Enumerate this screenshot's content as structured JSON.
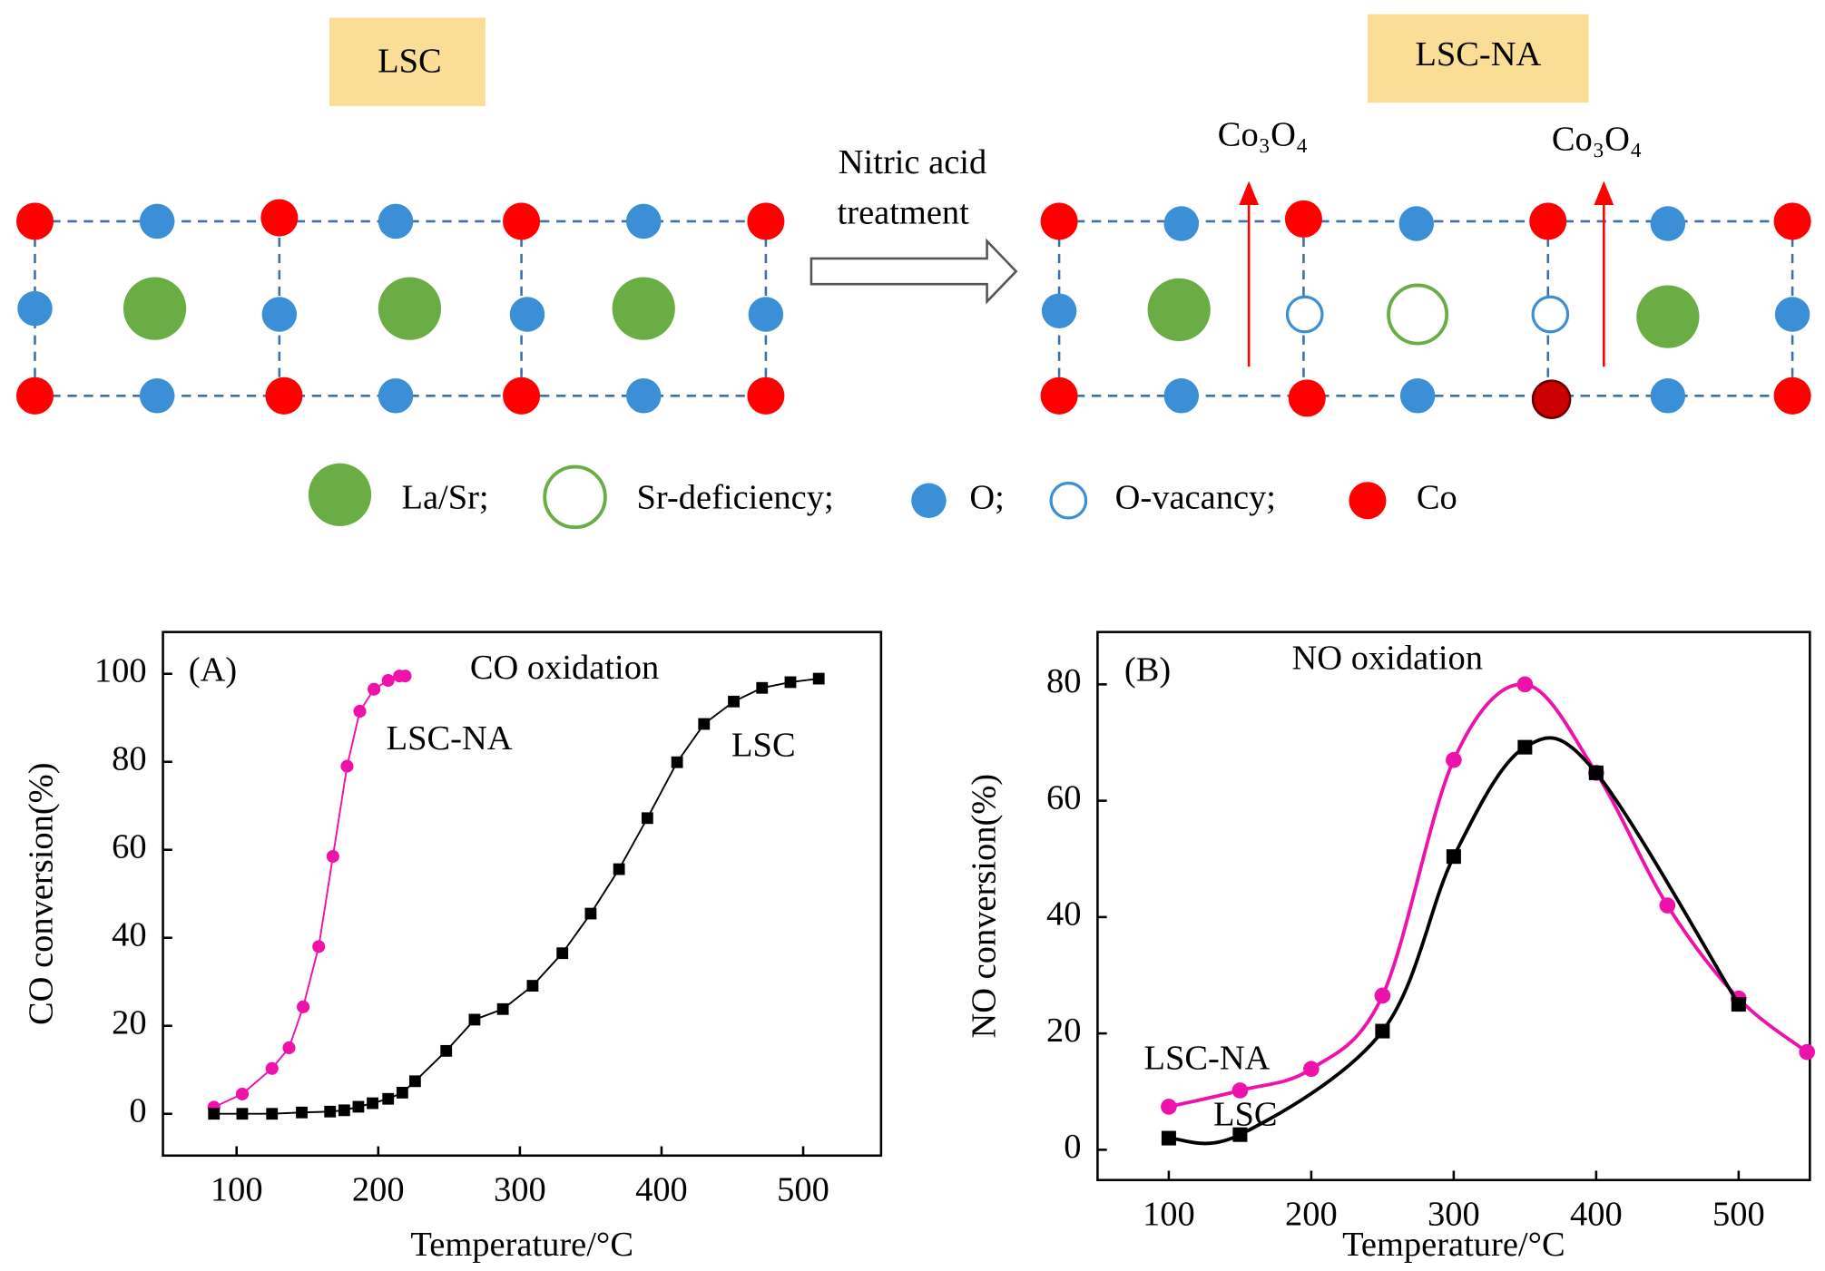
{
  "diagram": {
    "left_label": "LSC",
    "right_label": "LSC-NA",
    "arrow_label": [
      "Nitric acid",
      "treatment"
    ],
    "product_labels": [
      "Co₃O₄",
      "Co₃O₄"
    ],
    "legend": [
      "La/Sr;",
      "Sr-deficiency;",
      "O;",
      "O-vacancy;",
      "Co"
    ]
  },
  "chart_data": [
    {
      "type": "line",
      "panel": "(A)",
      "title": "CO oxidation",
      "x_label": "Temperature/°C",
      "y_label": "CO conversion(%)",
      "xlim": [
        48,
        555
      ],
      "ylim": [
        -9.5,
        109.5
      ],
      "xticks": [
        100,
        200,
        300,
        400,
        500
      ],
      "yticks": [
        0,
        20,
        40,
        60,
        80,
        100
      ],
      "series": [
        {
          "name": "LSC-NA",
          "color": "#ee11aa",
          "marker": "circle",
          "x": [
            84,
            104,
            125,
            137,
            147,
            158,
            168,
            178,
            187,
            197,
            207,
            215,
            219
          ],
          "values": [
            1.5,
            4.5,
            10.3,
            15,
            24.3,
            38,
            58.5,
            79,
            91.5,
            96.5,
            98.5,
            99.5,
            99.5
          ]
        },
        {
          "name": "LSC",
          "color": "#000000",
          "marker": "square",
          "x": [
            84,
            104,
            125,
            146,
            166,
            176,
            186,
            196,
            207,
            217,
            226,
            248,
            268,
            288,
            309,
            330,
            350,
            370,
            390,
            411,
            430,
            451,
            471,
            491,
            511
          ],
          "values": [
            0,
            0,
            0,
            0.3,
            0.5,
            0.8,
            1.6,
            2.4,
            3.4,
            4.8,
            7.4,
            14.3,
            21.4,
            23.8,
            29.1,
            36.5,
            45.5,
            55.6,
            67.2,
            79.9,
            88.6,
            93.7,
            96.8,
            98.1,
            98.9
          ]
        }
      ]
    },
    {
      "type": "line",
      "panel": "(B)",
      "title": "NO oxidation",
      "x_label": "Temperature/°C",
      "y_label": "NO conversion(%)",
      "xlim": [
        50,
        550
      ],
      "ylim": [
        -5.2,
        89
      ],
      "xticks": [
        100,
        200,
        300,
        400,
        500
      ],
      "yticks": [
        0,
        20,
        40,
        60,
        80
      ],
      "series": [
        {
          "name": "LSC-NA",
          "color": "#ee11aa",
          "marker": "circle",
          "x": [
            100,
            150,
            200,
            250,
            300,
            350,
            400,
            450,
            500,
            548
          ],
          "values": [
            7.4,
            10.2,
            13.9,
            26.5,
            67,
            80,
            64.8,
            42,
            26,
            16.8
          ]
        },
        {
          "name": "LSC",
          "color": "#000000",
          "marker": "square",
          "x": [
            100,
            150,
            250,
            300,
            350,
            400,
            500
          ],
          "values": [
            2,
            2.6,
            20.4,
            50.4,
            69.2,
            64.8,
            25
          ]
        }
      ]
    }
  ]
}
